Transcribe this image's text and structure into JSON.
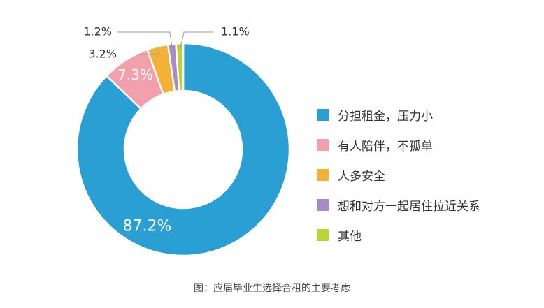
{
  "chart_data": {
    "type": "pie",
    "variant": "donut",
    "categories": [
      "分担租金，压力小",
      "有人陪伴，不孤单",
      "人多安全",
      "想和对方一起居住拉近关系",
      "其他"
    ],
    "values": [
      87.2,
      7.3,
      3.2,
      1.2,
      1.1
    ],
    "value_labels": [
      "87.2%",
      "7.3%",
      "3.2%",
      "1.2%",
      "1.1%"
    ],
    "colors": [
      "#2a9fd4",
      "#f1a0ac",
      "#f2b237",
      "#a78bc6",
      "#b9d437"
    ],
    "label_inside": [
      true,
      true,
      false,
      false,
      false
    ],
    "legend_placement": "right",
    "title": "图：应届毕业生选择合租的主要考虑"
  }
}
